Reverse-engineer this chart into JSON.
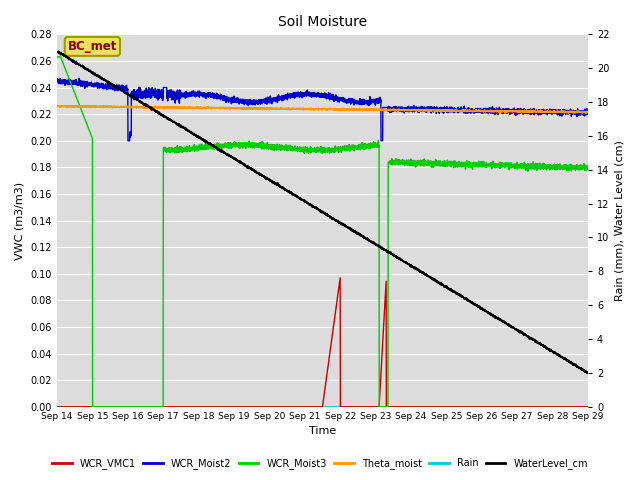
{
  "title": "Soil Moisture",
  "ylabel_left": "VWC (m3/m3)",
  "ylabel_right": "Rain (mm), Water Level (cm)",
  "xlabel": "Time",
  "ylim_left": [
    0.0,
    0.28
  ],
  "ylim_right": [
    0,
    22
  ],
  "plot_bg": "#dcdcdc",
  "fig_bg": "#ffffff",
  "annotation_text": "BC_met",
  "annotation_color": "#8B0000",
  "annotation_bg": "#f0e060",
  "annotation_border": "#999900",
  "x_tick_labels": [
    "Sep 14",
    "Sep 15",
    "Sep 16",
    "Sep 17",
    "Sep 18",
    "Sep 19",
    "Sep 20",
    "Sep 21",
    "Sep 22",
    "Sep 23",
    "Sep 24",
    "Sep 25",
    "Sep 26",
    "Sep 27",
    "Sep 28",
    "Sep 29"
  ],
  "legend_entries": [
    "WCR_VMC1",
    "WCR_Moist2",
    "WCR_Moist3",
    "Theta_moist",
    "Rain",
    "WaterLevel_cm"
  ],
  "legend_colors": [
    "#cc0000",
    "#0000cc",
    "#00cc00",
    "#ff9900",
    "#00cccc",
    "#000000"
  ],
  "yticks_left": [
    0.0,
    0.02,
    0.04,
    0.06,
    0.08,
    0.1,
    0.12,
    0.14,
    0.16,
    0.18,
    0.2,
    0.22,
    0.24,
    0.26,
    0.28
  ],
  "yticks_right": [
    0,
    2,
    4,
    6,
    8,
    10,
    12,
    14,
    16,
    18,
    20,
    22
  ],
  "grid_color": "#ffffff",
  "linewidth": 1.0
}
